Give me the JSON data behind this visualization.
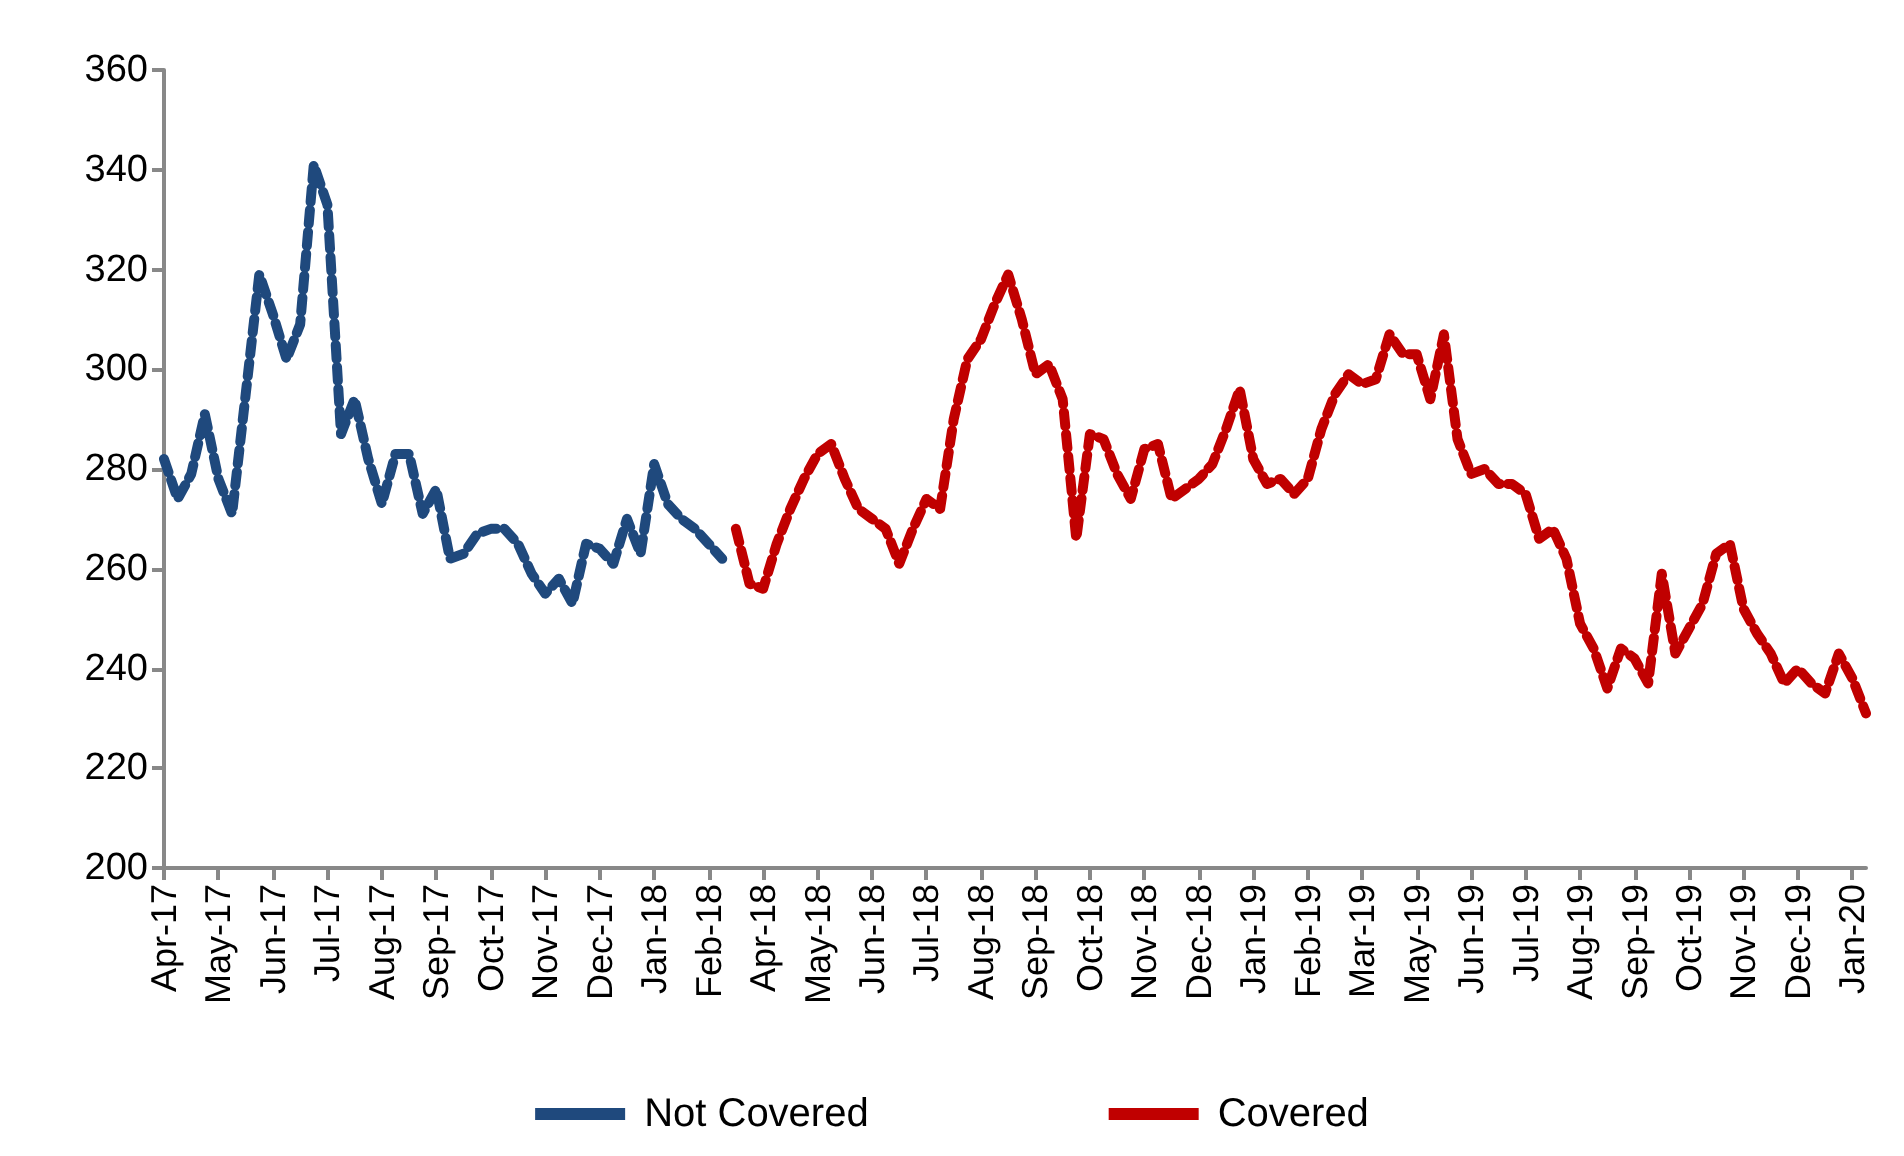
{
  "chart_data": {
    "type": "line",
    "line_style": "dashed",
    "marker": "none",
    "grid": false,
    "legend": "bottom",
    "ylim": [
      200,
      360
    ],
    "yticks": [
      200,
      220,
      240,
      260,
      280,
      300,
      320,
      340,
      360
    ],
    "categories": [
      "Apr-17",
      null,
      null,
      null,
      "May-17",
      null,
      null,
      null,
      "Jun-17",
      null,
      null,
      null,
      "Jul-17",
      null,
      null,
      null,
      "Aug-17",
      null,
      null,
      null,
      "Sep-17",
      null,
      null,
      null,
      "Oct-17",
      null,
      null,
      null,
      "Nov-17",
      null,
      null,
      null,
      "Dec-17",
      null,
      null,
      null,
      "Jan-18",
      null,
      null,
      null,
      "Feb-18",
      null,
      null,
      null,
      "Apr-18",
      null,
      null,
      null,
      "May-18",
      null,
      null,
      null,
      "Jun-18",
      null,
      null,
      null,
      "Jul-18",
      null,
      null,
      null,
      "Aug-18",
      null,
      null,
      null,
      "Sep-18",
      null,
      null,
      null,
      "Oct-18",
      null,
      null,
      null,
      "Nov-18",
      null,
      null,
      null,
      "Dec-18",
      null,
      null,
      null,
      "Jan-19",
      null,
      null,
      null,
      "Feb-19",
      null,
      null,
      null,
      "Mar-19",
      null,
      null,
      null,
      "May-19",
      null,
      null,
      null,
      "Jun-19",
      null,
      null,
      null,
      "Jul-19",
      null,
      null,
      null,
      "Aug-19",
      null,
      null,
      null,
      "Sep-19",
      null,
      null,
      null,
      "Oct-19",
      null,
      null,
      null,
      "Nov-19",
      null,
      null,
      null,
      "Dec-19",
      null,
      null,
      null,
      "Jan-20",
      null
    ],
    "series": [
      {
        "name": "Not Covered",
        "color": "#1f497d",
        "values": [
          282,
          274,
          279,
          291,
          278,
          271,
          295,
          319,
          311,
          302,
          309,
          341,
          333,
          287,
          294,
          282,
          273,
          283,
          283,
          271,
          276,
          262,
          263,
          267,
          268,
          268,
          265,
          259,
          255,
          258,
          253,
          265,
          264,
          261,
          270,
          263,
          281,
          273,
          270,
          268,
          265,
          262,
          null,
          null,
          null,
          null,
          null,
          null,
          null,
          null,
          null,
          null,
          null,
          null,
          null,
          null,
          null,
          null,
          null,
          null,
          null,
          null,
          null,
          null,
          null,
          null,
          null,
          null,
          null,
          null,
          null,
          null,
          null,
          null,
          null,
          null,
          null,
          null,
          null,
          null,
          null,
          null,
          null,
          null,
          null,
          null,
          null,
          null,
          null,
          null,
          null,
          null,
          null,
          null,
          null,
          null,
          null,
          null,
          null,
          null,
          null,
          null,
          null,
          null,
          null,
          null,
          null,
          null,
          null,
          null,
          null,
          null,
          null,
          null,
          null,
          null,
          null,
          null,
          null,
          null,
          null,
          null,
          null,
          null,
          null,
          null
        ]
      },
      {
        "name": "Covered",
        "color": "#c00000",
        "values": [
          null,
          null,
          null,
          null,
          null,
          null,
          null,
          null,
          null,
          null,
          null,
          null,
          null,
          null,
          null,
          null,
          null,
          null,
          null,
          null,
          null,
          null,
          null,
          null,
          null,
          null,
          null,
          null,
          null,
          null,
          null,
          null,
          null,
          null,
          null,
          null,
          null,
          null,
          null,
          null,
          null,
          null,
          268,
          257,
          256,
          265,
          272,
          278,
          283,
          285,
          278,
          272,
          270,
          268,
          261,
          268,
          274,
          272,
          290,
          302,
          306,
          313,
          319,
          310,
          299,
          301,
          294,
          266,
          287,
          286,
          279,
          274,
          284,
          285,
          274,
          276,
          278,
          281,
          288,
          296,
          282,
          277,
          278,
          275,
          278,
          288,
          295,
          299,
          297,
          298,
          307,
          303,
          303,
          294,
          307,
          286,
          279,
          280,
          277,
          277,
          275,
          266,
          268,
          262,
          249,
          244,
          236,
          244,
          242,
          237,
          259,
          243,
          248,
          253,
          263,
          265,
          252,
          247,
          243,
          237,
          240,
          237,
          235,
          243,
          238,
          231
        ]
      }
    ]
  }
}
